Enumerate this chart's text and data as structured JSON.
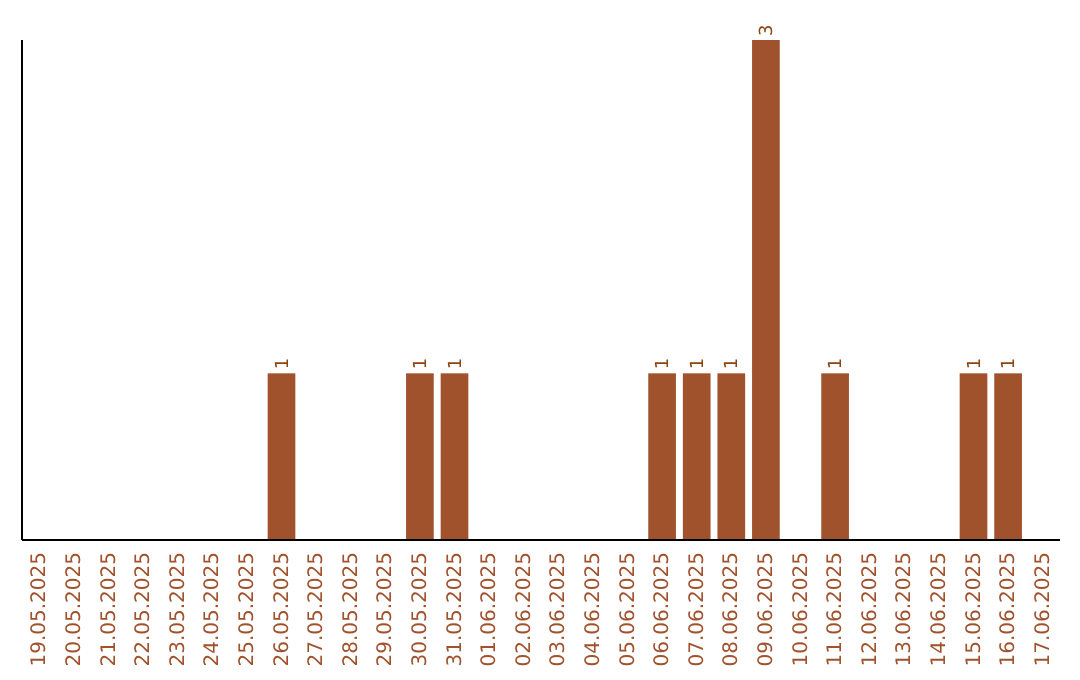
{
  "chart_data": {
    "type": "bar",
    "categories": [
      "19.05.2025",
      "20.05.2025",
      "21.05.2025",
      "22.05.2025",
      "23.05.2025",
      "24.05.2025",
      "25.05.2025",
      "26.05.2025",
      "27.05.2025",
      "28.05.2025",
      "29.05.2025",
      "30.05.2025",
      "31.05.2025",
      "01.06.2025",
      "02.06.2025",
      "03.06.2025",
      "04.06.2025",
      "05.06.2025",
      "06.06.2025",
      "07.06.2025",
      "08.06.2025",
      "09.06.2025",
      "10.06.2025",
      "11.06.2025",
      "12.06.2025",
      "13.06.2025",
      "14.06.2025",
      "15.06.2025",
      "16.06.2025",
      "17.06.2025"
    ],
    "values": [
      0,
      0,
      0,
      0,
      0,
      0,
      0,
      1,
      0,
      0,
      0,
      1,
      1,
      0,
      0,
      0,
      0,
      0,
      1,
      1,
      1,
      3,
      0,
      1,
      0,
      0,
      0,
      1,
      1,
      0
    ],
    "value_labels": [
      null,
      null,
      null,
      null,
      null,
      null,
      null,
      "1",
      null,
      null,
      null,
      "1",
      "1",
      null,
      null,
      null,
      null,
      null,
      "1",
      "1",
      "1",
      "3",
      null,
      "1",
      null,
      null,
      null,
      "1",
      "1",
      null
    ],
    "color": "#a0522d",
    "ylim": [
      0,
      3
    ],
    "tick_labels": "x"
  }
}
